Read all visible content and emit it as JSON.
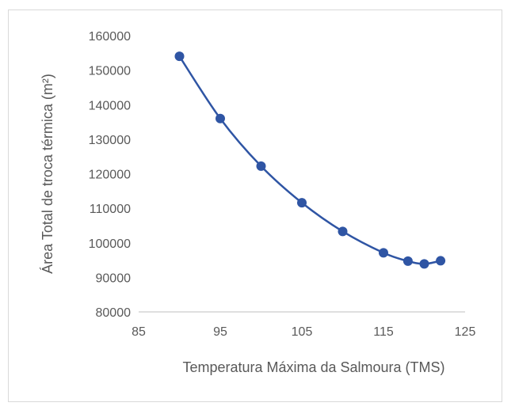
{
  "chart_data": {
    "type": "line",
    "title": "",
    "xlabel": "Temperatura Máxima da Salmoura (TMS)",
    "ylabel": "Área Total de troca térmica (m²)",
    "xlim": [
      85,
      125
    ],
    "ylim": [
      80000,
      160000
    ],
    "x_ticks": [
      "85",
      "95",
      "105",
      "115",
      "125"
    ],
    "y_ticks": [
      "80000",
      "90000",
      "100000",
      "110000",
      "120000",
      "130000",
      "140000",
      "150000",
      "160000"
    ],
    "grid": false,
    "legend": "none",
    "colors": {
      "series": "#2f55a4",
      "axis": "#bfbfbf",
      "text": "#595959"
    },
    "series": [
      {
        "smooth": true,
        "marker": "circle",
        "x": [
          90,
          95,
          100,
          105,
          110,
          115,
          118,
          120,
          122
        ],
        "y": [
          154000,
          136000,
          122200,
          111600,
          103300,
          97100,
          94700,
          93900,
          94800
        ]
      }
    ]
  }
}
